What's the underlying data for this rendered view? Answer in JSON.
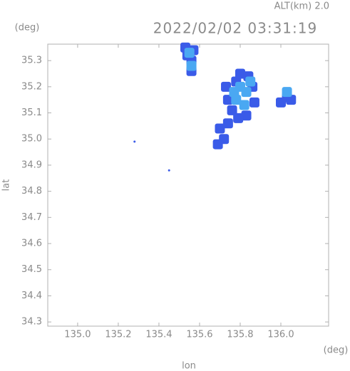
{
  "chart_data": {
    "type": "scatter",
    "title": "2022/02/02 03:31:19",
    "annotation": "ALT(km) 2.0",
    "y_unit": "(deg)",
    "x_unit": "(deg)",
    "x_label": "lon",
    "y_label": "lat",
    "xlim": [
      134.853,
      136.235
    ],
    "ylim": [
      34.284,
      35.363
    ],
    "xticks": [
      {
        "value": 135,
        "label": "135.0"
      },
      135.2,
      135.4,
      135.6,
      135.8,
      {
        "value": 136,
        "label": "136.0"
      }
    ],
    "yticks": [
      34.3,
      34.4,
      34.5,
      34.6,
      34.7,
      34.8,
      34.9,
      {
        "value": 35,
        "label": "35.0"
      },
      35.1,
      35.2,
      35.3
    ],
    "series": [
      {
        "color": "#3a5be8",
        "x": [
          135.53,
          135.57,
          135.56,
          135.56,
          135.54,
          135.73,
          135.74,
          135.76,
          135.78,
          135.8,
          135.84,
          135.86,
          135.87,
          135.83,
          135.79,
          135.74,
          135.7,
          135.72,
          135.69,
          136.0,
          136.03,
          136.05,
          135.45,
          135.28
        ],
        "y": [
          35.35,
          35.34,
          35.3,
          35.26,
          35.32,
          35.2,
          35.15,
          35.11,
          35.22,
          35.25,
          35.24,
          35.2,
          35.14,
          35.09,
          35.08,
          35.06,
          35.04,
          35.0,
          34.98,
          35.14,
          35.16,
          35.15,
          34.88,
          34.99
        ]
      },
      {
        "color": "#4aa8f2",
        "x": [
          135.55,
          135.56,
          135.8,
          135.83,
          135.78,
          135.82,
          135.85,
          136.03,
          135.77
        ],
        "y": [
          35.33,
          35.28,
          35.2,
          35.18,
          35.15,
          35.13,
          35.22,
          35.18,
          35.18
        ]
      }
    ]
  }
}
